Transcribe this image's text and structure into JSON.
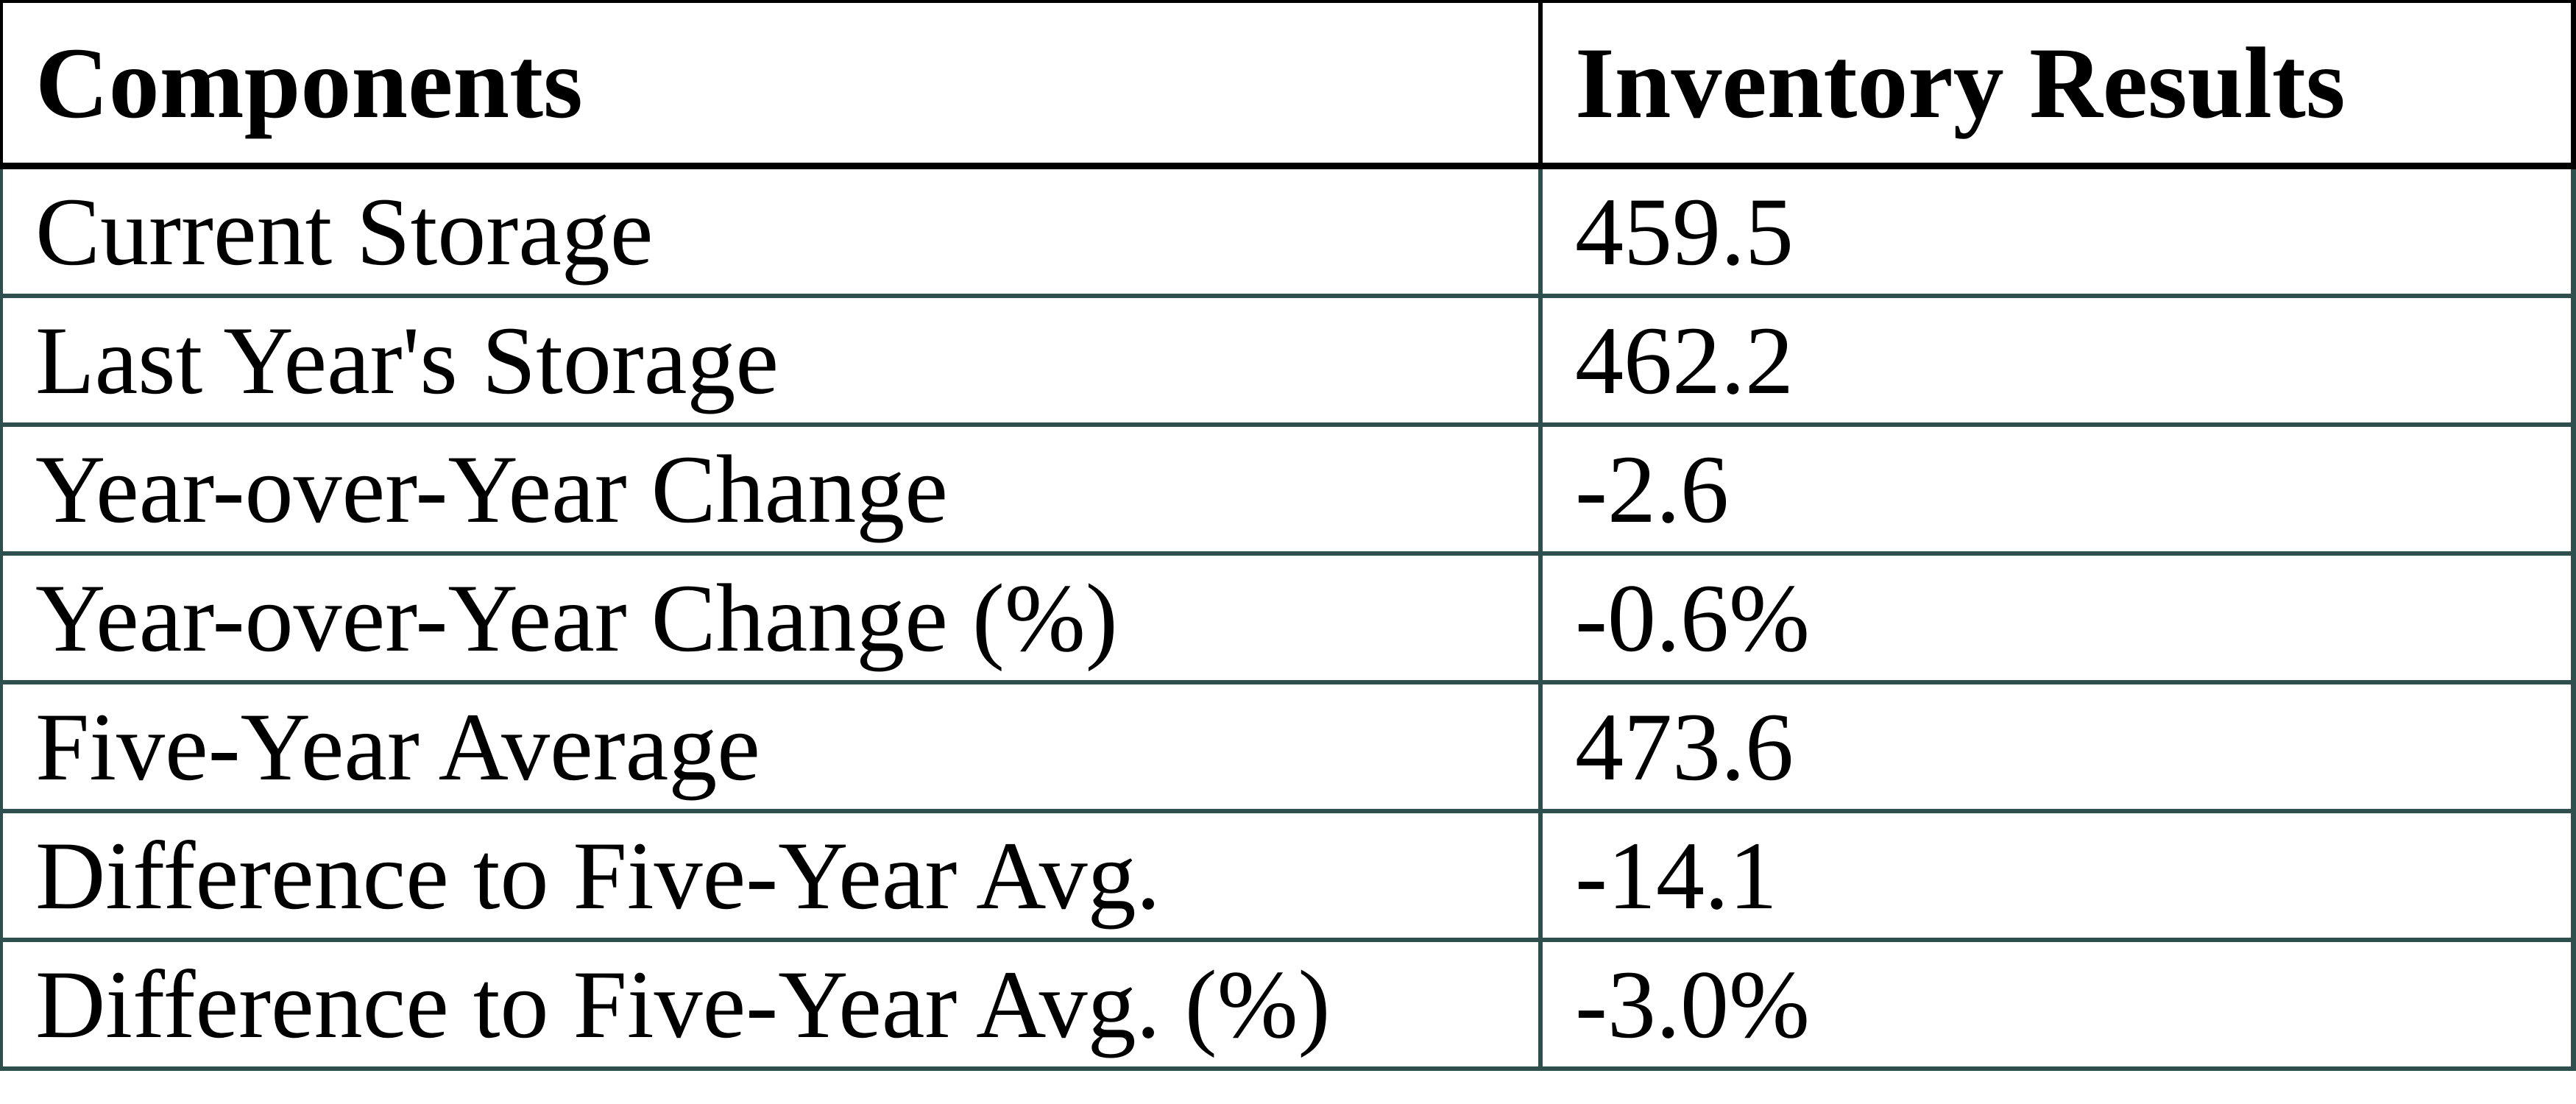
{
  "table": {
    "columns": [
      {
        "label": "Components"
      },
      {
        "label": "Inventory Results"
      }
    ],
    "rows": [
      {
        "label": "Current Storage",
        "value": "459.5"
      },
      {
        "label": "Last Year's Storage",
        "value": "462.2"
      },
      {
        "label": "Year-over-Year Change",
        "value": "-2.6"
      },
      {
        "label": "Year-over-Year Change (%)",
        "value": "-0.6%"
      },
      {
        "label": "Five-Year Average",
        "value": "473.6"
      },
      {
        "label": "Difference to Five-Year Avg.",
        "value": "-14.1"
      },
      {
        "label": "Difference to Five-Year Avg. (%)",
        "value": "-3.0%"
      }
    ],
    "colors": {
      "header_border": "#000000",
      "row_border": "#2F4F4F",
      "text": "#000000",
      "background": "#FFFFFF"
    }
  },
  "chart_data": {
    "type": "table",
    "title": "",
    "columns": [
      "Components",
      "Inventory Results"
    ],
    "categories": [
      "Current Storage",
      "Last Year's Storage",
      "Year-over-Year Change",
      "Year-over-Year Change (%)",
      "Five-Year Average",
      "Difference to Five-Year Avg.",
      "Difference to Five-Year Avg. (%)"
    ],
    "values": [
      459.5,
      462.2,
      -2.6,
      -0.6,
      473.6,
      -14.1,
      -3.0
    ],
    "value_labels": [
      "459.5",
      "462.2",
      "-2.6",
      "-0.6%",
      "473.6",
      "-14.1",
      "-3.0%"
    ]
  }
}
